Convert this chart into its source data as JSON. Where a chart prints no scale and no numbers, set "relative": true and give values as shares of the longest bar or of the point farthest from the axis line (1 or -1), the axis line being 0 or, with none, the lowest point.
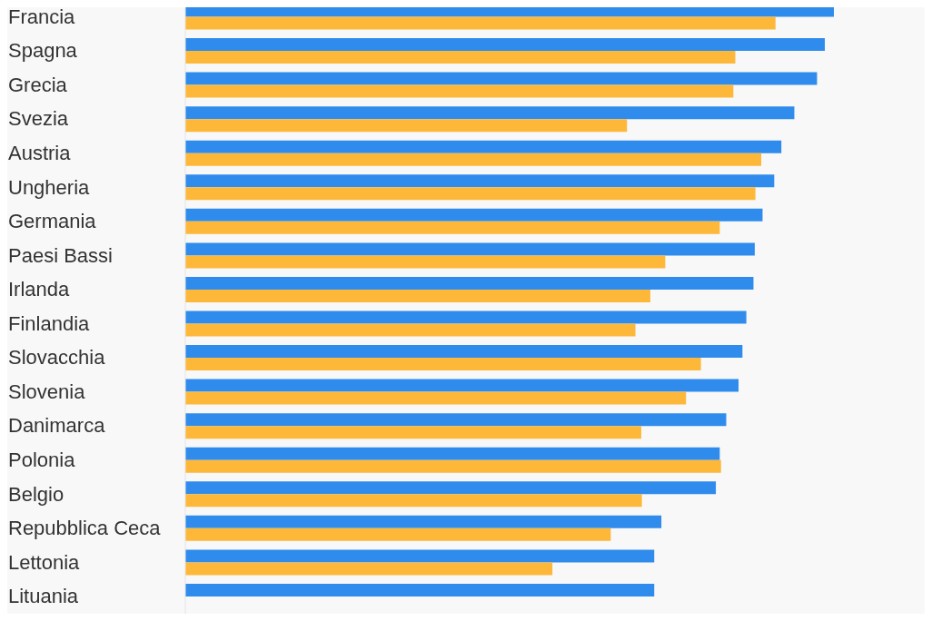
{
  "chart_data": {
    "type": "bar",
    "orientation": "horizontal",
    "relative": true,
    "categories": [
      "Francia",
      "Spagna",
      "Grecia",
      "Svezia",
      "Austria",
      "Ungheria",
      "Germania",
      "Paesi Bassi",
      "Irlanda",
      "Finlandia",
      "Slovacchia",
      "Slovenia",
      "Danimarca",
      "Polonia",
      "Belgio",
      "Repubblica Ceca",
      "Lettonia",
      "Lituania"
    ],
    "series": [
      {
        "color": "#2f8cec",
        "values": [
          1,
          0.986,
          0.974,
          0.939,
          0.919,
          0.908,
          0.89,
          0.878,
          0.876,
          0.865,
          0.859,
          0.853,
          0.834,
          0.824,
          0.818,
          0.734,
          0.723,
          0.723
        ]
      },
      {
        "color": "#fdb83a",
        "values": [
          0.91,
          0.848,
          0.845,
          0.681,
          0.888,
          0.879,
          0.824,
          0.74,
          0.717,
          0.694,
          0.795,
          0.772,
          0.703,
          0.826,
          0.704,
          0.656,
          0.566,
          null
        ]
      }
    ]
  }
}
